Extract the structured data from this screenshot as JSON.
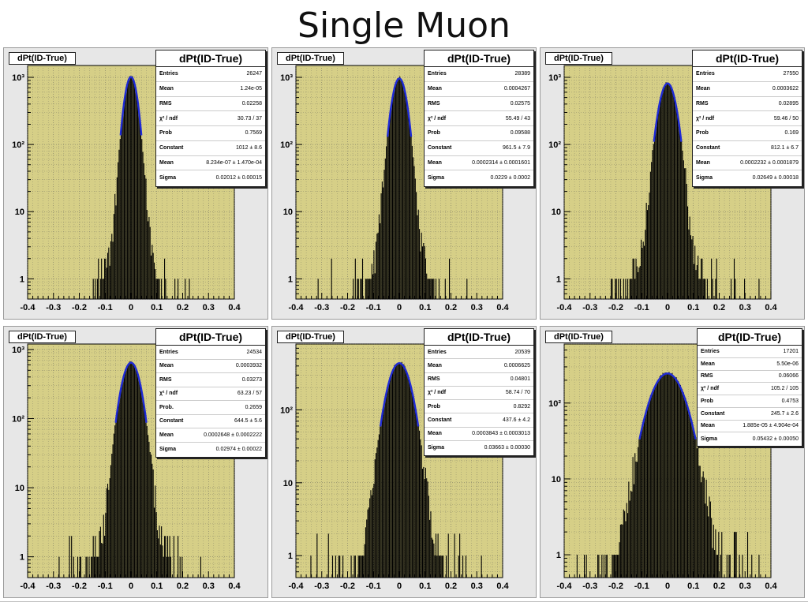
{
  "slide": {
    "title": "Single Muon"
  },
  "panels": [
    {
      "label": "dPt(ID-True)",
      "stats": {
        "title": "dPt(ID-True)",
        "rows": [
          {
            "label": "Entries",
            "value": "26247"
          },
          {
            "label": "Mean",
            "value": "1.24e-05"
          },
          {
            "label": "RMS",
            "value": "0.02258"
          },
          {
            "label": "χ² / ndf",
            "value": "30.73 / 37"
          },
          {
            "label": "Prob",
            "value": "0.7569"
          },
          {
            "label": "Constant",
            "value": "1012 ± 8.6"
          },
          {
            "label": "Mean",
            "value": "8.234e-07 ± 1.470e-04"
          },
          {
            "label": "Sigma",
            "value": "0.02012 ± 0.00015"
          }
        ]
      }
    },
    {
      "label": "dPt(ID-True)",
      "stats": {
        "title": "dPt(ID-True)",
        "rows": [
          {
            "label": "Entries",
            "value": "28389"
          },
          {
            "label": "Mean",
            "value": "0.0004267"
          },
          {
            "label": "RMS",
            "value": "0.02575"
          },
          {
            "label": "χ² / ndf",
            "value": "55.49 / 43"
          },
          {
            "label": "Prob",
            "value": "0.09588"
          },
          {
            "label": "Constant",
            "value": "961.5 ± 7.9"
          },
          {
            "label": "Mean",
            "value": "0.0002314 ± 0.0001601"
          },
          {
            "label": "Sigma",
            "value": "0.0229 ± 0.0002"
          }
        ]
      }
    },
    {
      "label": "dPt(ID-True)",
      "stats": {
        "title": "dPt(ID-True)",
        "rows": [
          {
            "label": "Entries",
            "value": "27550"
          },
          {
            "label": "Mean",
            "value": "0.0003622"
          },
          {
            "label": "RMS",
            "value": "0.02895"
          },
          {
            "label": "χ² / ndf",
            "value": "59.46 / 50"
          },
          {
            "label": "Prob",
            "value": "0.169"
          },
          {
            "label": "Constant",
            "value": "812.1 ± 6.7"
          },
          {
            "label": "Mean",
            "value": "0.0002232 ± 0.0001879"
          },
          {
            "label": "Sigma",
            "value": "0.02649 ± 0.00018"
          }
        ]
      }
    },
    {
      "label": "dPt(ID-True)",
      "stats": {
        "title": "dPt(ID-True)",
        "rows": [
          {
            "label": "Entries",
            "value": "24534"
          },
          {
            "label": "Mean",
            "value": "0.0003932"
          },
          {
            "label": "RMS",
            "value": "0.03273"
          },
          {
            "label": "χ² / ndf",
            "value": "63.23 / 57"
          },
          {
            "label": "Prob.",
            "value": "0.2659"
          },
          {
            "label": "Constant",
            "value": "644.5 ± 5.6"
          },
          {
            "label": "Mean",
            "value": "0.0002648 ± 0.0002222"
          },
          {
            "label": "Sigma",
            "value": "0.02974 ± 0.00022"
          }
        ]
      }
    },
    {
      "label": "dPt(ID-True)",
      "stats": {
        "title": "dPt(ID-True)",
        "rows": [
          {
            "label": "Entries",
            "value": "20539"
          },
          {
            "label": "Mean",
            "value": "0.0006625"
          },
          {
            "label": "RMS",
            "value": "0.04801"
          },
          {
            "label": "χ² / ndf",
            "value": "58.74 / 70"
          },
          {
            "label": "Prob",
            "value": "0.8292"
          },
          {
            "label": "Constant",
            "value": "437.6 ± 4.2"
          },
          {
            "label": "Mean",
            "value": "0.0003843 ± 0.0003013"
          },
          {
            "label": "Sigma",
            "value": "0.03663 ± 0.00030"
          }
        ]
      }
    },
    {
      "label": "dPt(ID-True)",
      "stats": {
        "title": "dPt(ID-True)",
        "rows": [
          {
            "label": "Entries",
            "value": "17201"
          },
          {
            "label": "Mean",
            "value": "5.50e-06"
          },
          {
            "label": "RMS",
            "value": "0.06066"
          },
          {
            "label": "χ² / ndf",
            "value": "105.2 / 105"
          },
          {
            "label": "Prob",
            "value": "0.4753"
          },
          {
            "label": "Constant",
            "value": "245.7 ± 2.6"
          },
          {
            "label": "Mean",
            "value": "1.885e-05 ± 4.904e-04"
          },
          {
            "label": "Sigma",
            "value": "0.05432 ± 0.00050"
          }
        ]
      }
    }
  ],
  "chart_data": [
    {
      "type": "histogram-log",
      "title": "dPt(ID-True)",
      "xlim": [
        -0.4,
        0.4
      ],
      "ylog": true,
      "ylim": [
        0.5,
        1500
      ],
      "xticks": [
        "-0.4",
        "-0.3",
        "-0.2",
        "-0.1",
        "0",
        "0.1",
        "0.2",
        "0.3",
        "0.4"
      ],
      "yticks": [
        {
          "v": 1,
          "label": "1"
        },
        {
          "v": 10,
          "label": "10"
        },
        {
          "v": 100,
          "label": "10²"
        },
        {
          "v": 1000,
          "label": "10³"
        }
      ],
      "fit": {
        "type": "gaussian",
        "constant": 1012,
        "mean": 8.234e-07,
        "sigma": 0.02012
      },
      "grid": true,
      "legend": "top-right",
      "colors": {
        "plot_bg": "#d6cf87",
        "hist": "#000000",
        "fit": "#1f2bd6"
      }
    },
    {
      "type": "histogram-log",
      "title": "dPt(ID-True)",
      "xlim": [
        -0.4,
        0.4
      ],
      "ylog": true,
      "ylim": [
        0.5,
        1500
      ],
      "xticks": [
        "-0.4",
        "-0.3",
        "-0.2",
        "-0.1",
        "0",
        "0.1",
        "0.2",
        "0.3",
        "0.4"
      ],
      "yticks": [
        {
          "v": 1,
          "label": "1"
        },
        {
          "v": 10,
          "label": "10"
        },
        {
          "v": 100,
          "label": "10²"
        },
        {
          "v": 1000,
          "label": "10³"
        }
      ],
      "fit": {
        "type": "gaussian",
        "constant": 961.5,
        "mean": 0.0002314,
        "sigma": 0.0229
      },
      "grid": true,
      "legend": "top-right",
      "colors": {
        "plot_bg": "#d6cf87",
        "hist": "#000000",
        "fit": "#1f2bd6"
      }
    },
    {
      "type": "histogram-log",
      "title": "dPt(ID-True)",
      "xlim": [
        -0.4,
        0.4
      ],
      "ylog": true,
      "ylim": [
        0.5,
        1500
      ],
      "xticks": [
        "-0.4",
        "-0.3",
        "-0.2",
        "-0.1",
        "0",
        "0.1",
        "0.2",
        "0.3",
        "0.4"
      ],
      "yticks": [
        {
          "v": 1,
          "label": "1"
        },
        {
          "v": 10,
          "label": "10"
        },
        {
          "v": 100,
          "label": "10²"
        },
        {
          "v": 1000,
          "label": "10³"
        }
      ],
      "fit": {
        "type": "gaussian",
        "constant": 812.1,
        "mean": 0.0002232,
        "sigma": 0.02649
      },
      "grid": true,
      "legend": "top-right",
      "colors": {
        "plot_bg": "#d6cf87",
        "hist": "#000000",
        "fit": "#1f2bd6"
      }
    },
    {
      "type": "histogram-log",
      "title": "dPt(ID-True)",
      "xlim": [
        -0.4,
        0.4
      ],
      "ylog": true,
      "ylim": [
        0.5,
        1200
      ],
      "xticks": [
        "-0.4",
        "-0.3",
        "-0.2",
        "-0.1",
        "0",
        "0.1",
        "0.2",
        "0.3",
        "0.4"
      ],
      "yticks": [
        {
          "v": 1,
          "label": "1"
        },
        {
          "v": 10,
          "label": "10"
        },
        {
          "v": 100,
          "label": "10²"
        },
        {
          "v": 1000,
          "label": "10³"
        }
      ],
      "fit": {
        "type": "gaussian",
        "constant": 644.5,
        "mean": 0.0002648,
        "sigma": 0.02974
      },
      "grid": true,
      "legend": "top-right",
      "colors": {
        "plot_bg": "#d6cf87",
        "hist": "#000000",
        "fit": "#1f2bd6"
      }
    },
    {
      "type": "histogram-log",
      "title": "dPt(ID-True)",
      "xlim": [
        -0.4,
        0.4
      ],
      "ylog": true,
      "ylim": [
        0.5,
        800
      ],
      "xticks": [
        "-0.4",
        "-0.3",
        "-0.2",
        "-0.1",
        "0",
        "0.1",
        "0.2",
        "0.3",
        "0.4"
      ],
      "yticks": [
        {
          "v": 1,
          "label": "1"
        },
        {
          "v": 10,
          "label": "10"
        },
        {
          "v": 100,
          "label": "10²"
        }
      ],
      "fit": {
        "type": "gaussian",
        "constant": 437.6,
        "mean": 0.0003843,
        "sigma": 0.03663
      },
      "grid": true,
      "legend": "top-right",
      "colors": {
        "plot_bg": "#d6cf87",
        "hist": "#000000",
        "fit": "#1f2bd6"
      }
    },
    {
      "type": "histogram-log",
      "title": "dPt(ID-True)",
      "xlim": [
        -0.4,
        0.4
      ],
      "ylog": true,
      "ylim": [
        0.5,
        600
      ],
      "xticks": [
        "-0.4",
        "-0.3",
        "-0.2",
        "-0.1",
        "0",
        "0.1",
        "0.2",
        "0.3",
        "0.4"
      ],
      "yticks": [
        {
          "v": 1,
          "label": "1"
        },
        {
          "v": 10,
          "label": "10"
        },
        {
          "v": 100,
          "label": "10²"
        }
      ],
      "fit": {
        "type": "gaussian",
        "constant": 245.7,
        "mean": 1.885e-05,
        "sigma": 0.05432
      },
      "grid": true,
      "legend": "top-right",
      "colors": {
        "plot_bg": "#d6cf87",
        "hist": "#000000",
        "fit": "#1f2bd6"
      }
    }
  ]
}
